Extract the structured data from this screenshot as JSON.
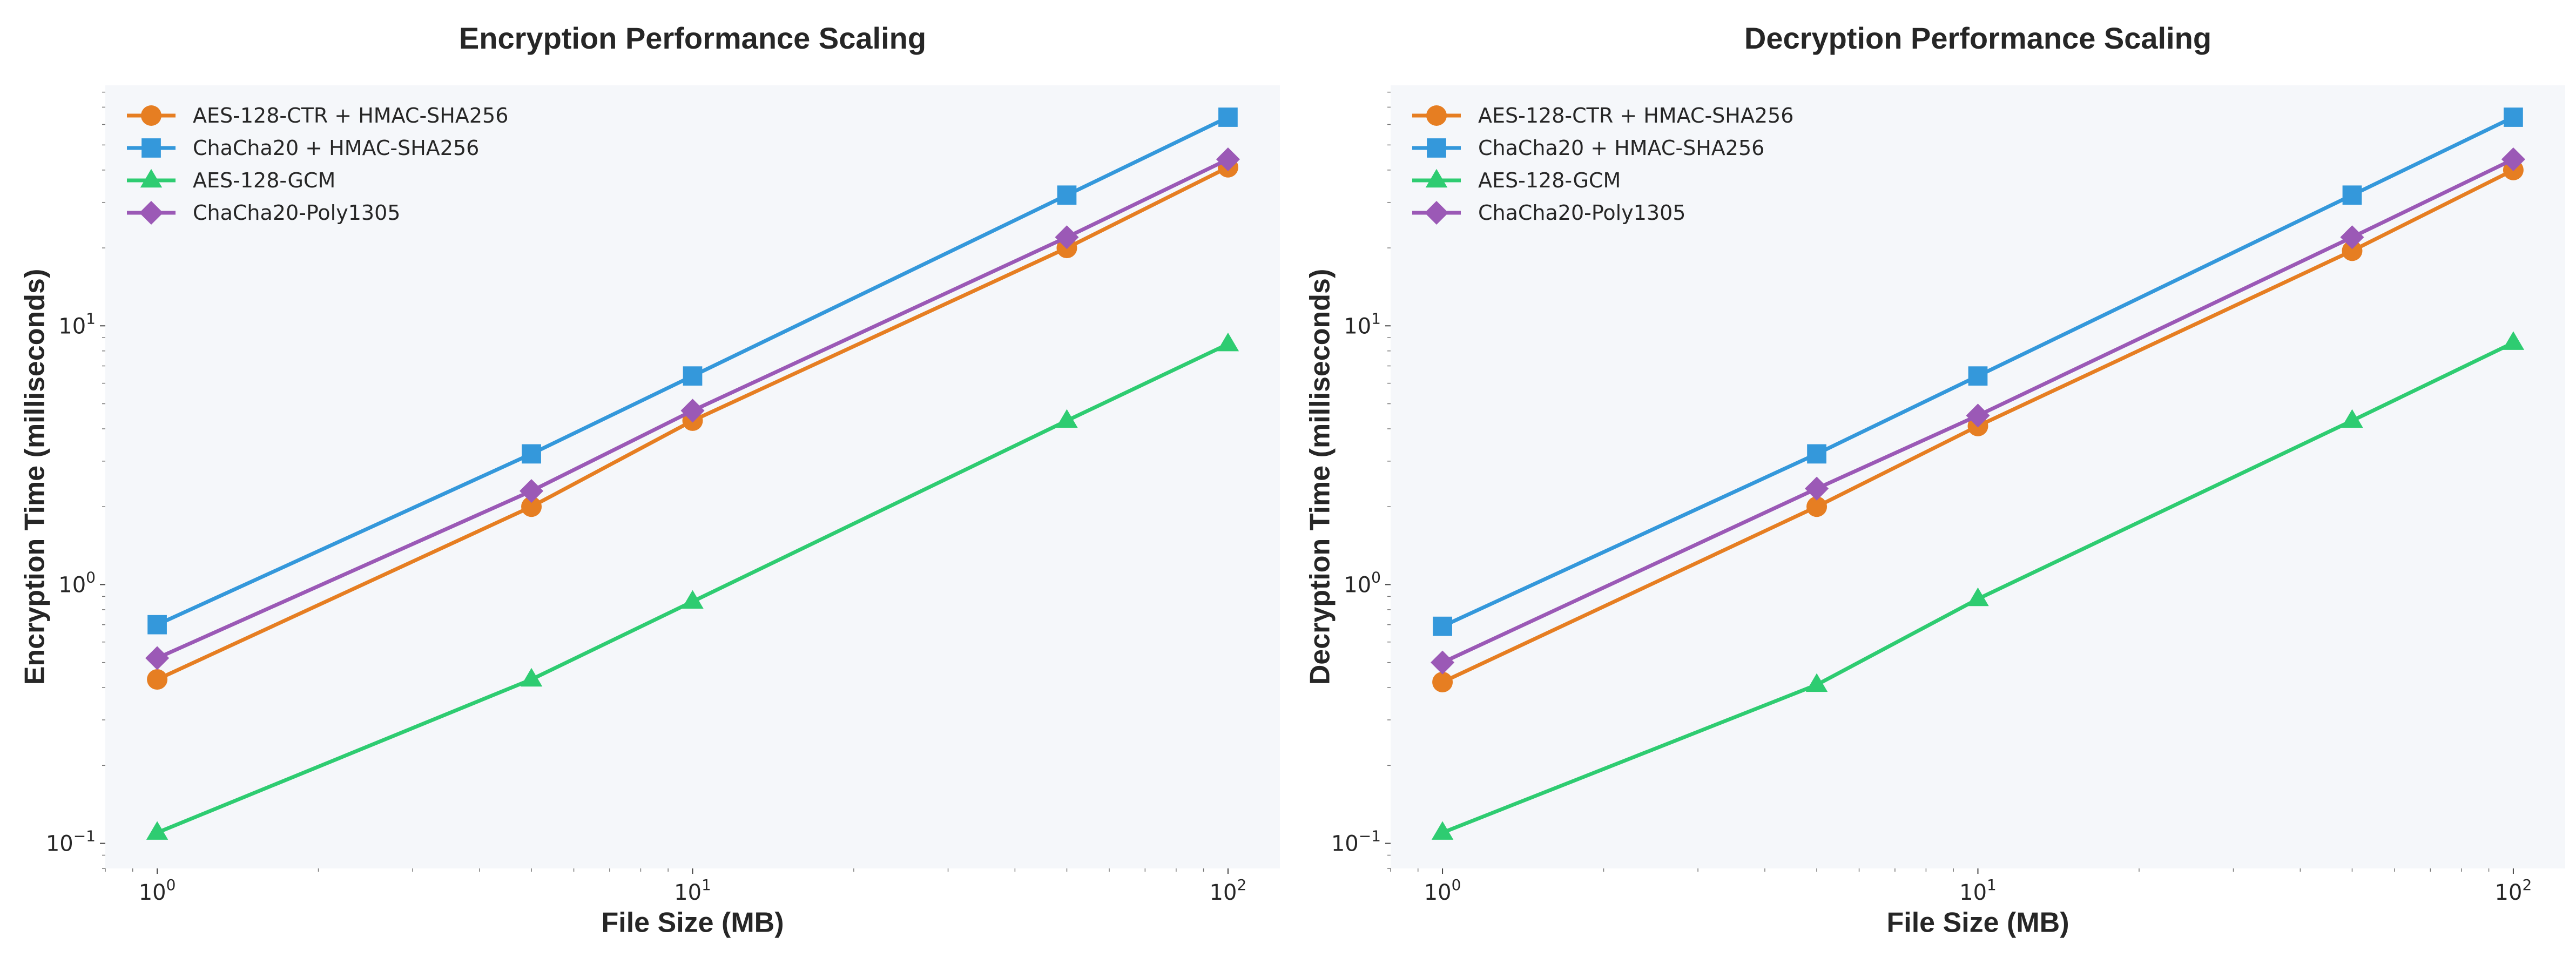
{
  "chart_data": [
    {
      "type": "line",
      "title": "Encryption Performance Scaling",
      "xlabel": "File Size (MB)",
      "ylabel": "Encryption Time (milliseconds)",
      "xscale": "log",
      "yscale": "log",
      "xlim": [
        0.8,
        125
      ],
      "ylim": [
        0.08,
        85
      ],
      "x_ticks": [
        {
          "base": "10",
          "exp": "0",
          "value": 1
        },
        {
          "base": "10",
          "exp": "1",
          "value": 10
        },
        {
          "base": "10",
          "exp": "2",
          "value": 100
        }
      ],
      "y_ticks": [
        {
          "base": "10",
          "exp": "−1",
          "value": 0.1
        },
        {
          "base": "10",
          "exp": "0",
          "value": 1
        },
        {
          "base": "10",
          "exp": "1",
          "value": 10
        }
      ],
      "grid": false,
      "legend_position": "top-left",
      "x": [
        1,
        5,
        10,
        50,
        100
      ],
      "series": [
        {
          "name": "AES-128-CTR + HMAC-SHA256",
          "color": "#e67e22",
          "marker": "circle",
          "values": [
            0.43,
            2.0,
            4.3,
            20.0,
            41.0
          ]
        },
        {
          "name": "ChaCha20 + HMAC-SHA256",
          "color": "#3498db",
          "marker": "square",
          "values": [
            0.7,
            3.2,
            6.4,
            32.0,
            64.0
          ]
        },
        {
          "name": "AES-128-GCM",
          "color": "#2ecc71",
          "marker": "triangle",
          "values": [
            0.11,
            0.43,
            0.86,
            4.3,
            8.5
          ]
        },
        {
          "name": "ChaCha20-Poly1305",
          "color": "#9b59b6",
          "marker": "diamond",
          "values": [
            0.52,
            2.3,
            4.7,
            22.0,
            44.0
          ]
        }
      ]
    },
    {
      "type": "line",
      "title": "Decryption Performance Scaling",
      "xlabel": "File Size (MB)",
      "ylabel": "Decryption Time (milliseconds)",
      "xscale": "log",
      "yscale": "log",
      "xlim": [
        0.8,
        125
      ],
      "ylim": [
        0.08,
        85
      ],
      "x_ticks": [
        {
          "base": "10",
          "exp": "0",
          "value": 1
        },
        {
          "base": "10",
          "exp": "1",
          "value": 10
        },
        {
          "base": "10",
          "exp": "2",
          "value": 100
        }
      ],
      "y_ticks": [
        {
          "base": "10",
          "exp": "−1",
          "value": 0.1
        },
        {
          "base": "10",
          "exp": "0",
          "value": 1
        },
        {
          "base": "10",
          "exp": "1",
          "value": 10
        }
      ],
      "grid": false,
      "legend_position": "top-left",
      "x": [
        1,
        5,
        10,
        50,
        100
      ],
      "series": [
        {
          "name": "AES-128-CTR + HMAC-SHA256",
          "color": "#e67e22",
          "marker": "circle",
          "values": [
            0.42,
            2.0,
            4.1,
            19.5,
            40.0
          ]
        },
        {
          "name": "ChaCha20 + HMAC-SHA256",
          "color": "#3498db",
          "marker": "square",
          "values": [
            0.69,
            3.2,
            6.4,
            32.0,
            64.0
          ]
        },
        {
          "name": "AES-128-GCM",
          "color": "#2ecc71",
          "marker": "triangle",
          "values": [
            0.11,
            0.41,
            0.88,
            4.3,
            8.6
          ]
        },
        {
          "name": "ChaCha20-Poly1305",
          "color": "#9b59b6",
          "marker": "diamond",
          "values": [
            0.5,
            2.35,
            4.5,
            22.0,
            44.0
          ]
        }
      ]
    }
  ]
}
